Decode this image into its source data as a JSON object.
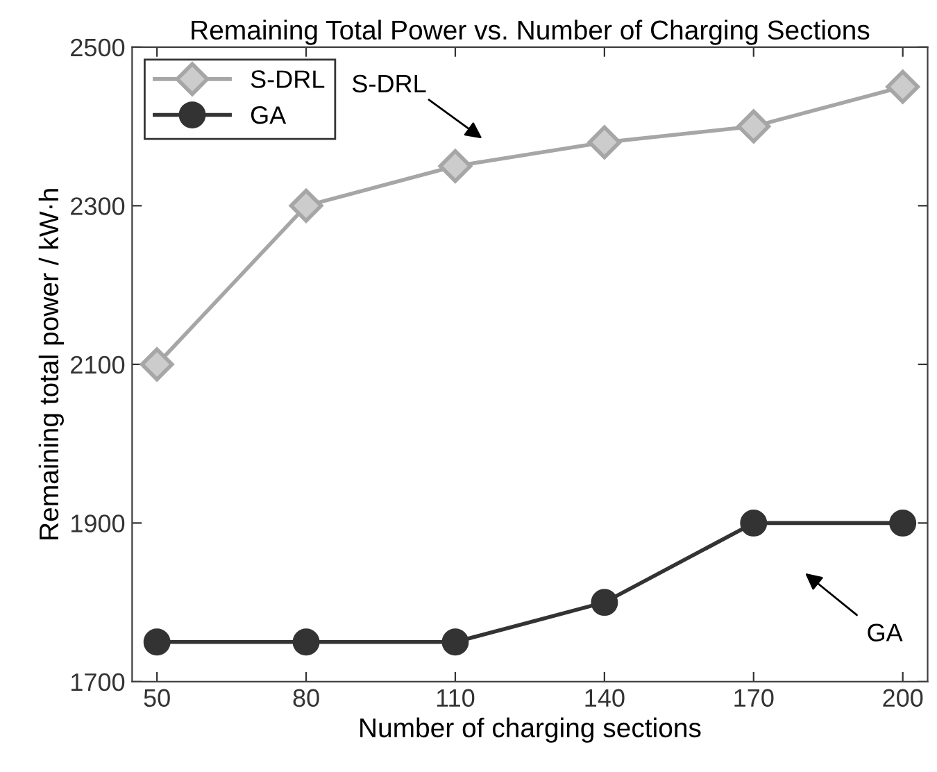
{
  "chart_data": {
    "type": "line",
    "title": "Remaining Total Power vs. Number of Charging Sections",
    "xlabel": "Number of charging sections",
    "ylabel": "Remaining total power / kW·h",
    "x": [
      50,
      80,
      110,
      140,
      170,
      200
    ],
    "series": [
      {
        "name": "S-DRL",
        "color": "#a6a6a6",
        "marker": "diamond",
        "values": [
          2100,
          2300,
          2350,
          2380,
          2400,
          2450
        ]
      },
      {
        "name": "GA",
        "color": "#333333",
        "marker": "circle",
        "values": [
          1750,
          1750,
          1750,
          1800,
          1900,
          1900
        ]
      }
    ],
    "xlim": [
      45,
      205
    ],
    "xticks": [
      50,
      80,
      110,
      140,
      170,
      200
    ],
    "ylim": [
      1700,
      2500
    ],
    "yticks": [
      1700,
      1900,
      2100,
      2300,
      2500
    ],
    "annotations": [
      "S-DRL",
      "GA"
    ],
    "grid": false,
    "legend": "top left",
    "line_style": "solid"
  }
}
